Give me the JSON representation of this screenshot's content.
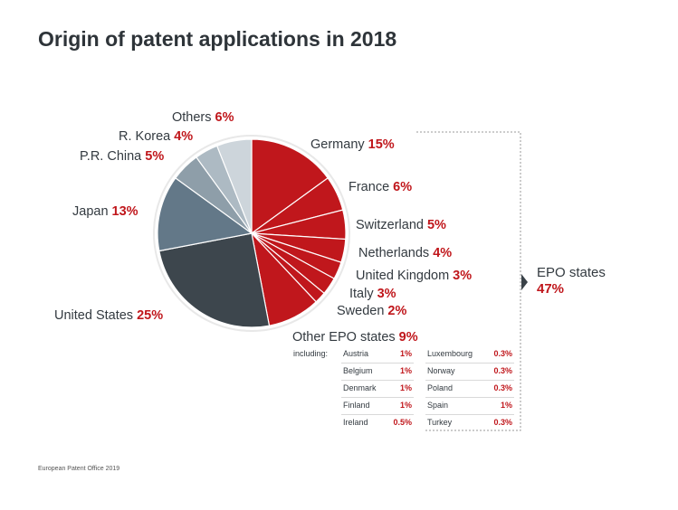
{
  "title": "Origin of patent applications in 2018",
  "chart_data": {
    "type": "pie",
    "slices": [
      {
        "label": "Germany",
        "value": 15,
        "display": "15%",
        "color": "#c0171c"
      },
      {
        "label": "France",
        "value": 6,
        "display": "6%",
        "color": "#c0171c"
      },
      {
        "label": "Switzerland",
        "value": 5,
        "display": "5%",
        "color": "#c0171c"
      },
      {
        "label": "Netherlands",
        "value": 4,
        "display": "4%",
        "color": "#c0171c"
      },
      {
        "label": "United Kingdom",
        "value": 3,
        "display": "3%",
        "color": "#c0171c"
      },
      {
        "label": "Italy",
        "value": 3,
        "display": "3%",
        "color": "#c0171c"
      },
      {
        "label": "Sweden",
        "value": 2,
        "display": "2%",
        "color": "#c0171c"
      },
      {
        "label": "Other EPO states",
        "value": 9,
        "display": "9%",
        "color": "#c0171c"
      },
      {
        "label": "United States",
        "value": 25,
        "display": "25%",
        "color": "#3d464d"
      },
      {
        "label": "Japan",
        "value": 13,
        "display": "13%",
        "color": "#637888"
      },
      {
        "label": "P.R. China",
        "value": 5,
        "display": "5%",
        "color": "#8e9ea9"
      },
      {
        "label": "R. Korea",
        "value": 4,
        "display": "4%",
        "color": "#adbac3"
      },
      {
        "label": "Others",
        "value": 6,
        "display": "6%",
        "color": "#cdd5db"
      }
    ],
    "group": {
      "label": "EPO states",
      "value": "47%"
    },
    "breakdown_intro": "including:",
    "breakdown": [
      {
        "name": "Austria",
        "value": "1%"
      },
      {
        "name": "Belgium",
        "value": "1%"
      },
      {
        "name": "Denmark",
        "value": "1%"
      },
      {
        "name": "Finland",
        "value": "1%"
      },
      {
        "name": "Ireland",
        "value": "0.5%"
      },
      {
        "name": "Luxembourg",
        "value": "0.3%"
      },
      {
        "name": "Norway",
        "value": "0.3%"
      },
      {
        "name": "Poland",
        "value": "0.3%"
      },
      {
        "name": "Spain",
        "value": "1%"
      },
      {
        "name": "Turkey",
        "value": "0.3%"
      }
    ]
  },
  "footer": "European Patent Office 2019"
}
